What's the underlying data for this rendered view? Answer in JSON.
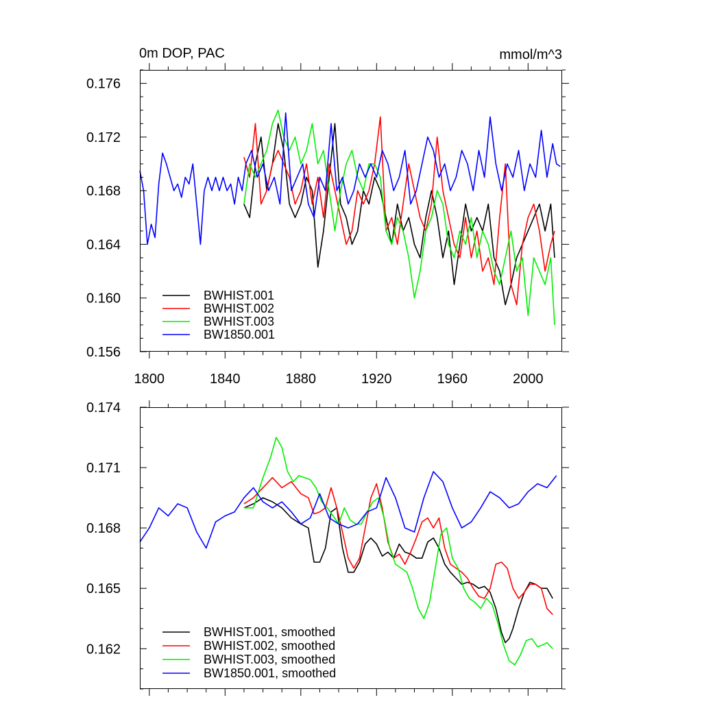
{
  "chart_data": [
    {
      "type": "line",
      "title_left": "0m DOP, PAC",
      "title_right": "mmol/m^3",
      "xlim": [
        1795,
        2018
      ],
      "ylim": [
        0.156,
        0.177
      ],
      "xticks": [
        1800,
        1840,
        1880,
        1920,
        1960,
        2000
      ],
      "yticks": [
        0.156,
        0.16,
        0.164,
        0.168,
        0.172,
        0.176
      ],
      "ytick_labels": [
        "0.156",
        "0.160",
        "0.164",
        "0.168",
        "0.172",
        "0.176"
      ],
      "legend_position": "bottom-left",
      "series": [
        {
          "name": "BWHIST.001",
          "color": "#000000",
          "x": [
            1850,
            1853,
            1856,
            1859,
            1862,
            1865,
            1868,
            1871,
            1874,
            1877,
            1880,
            1883,
            1886,
            1889,
            1892,
            1895,
            1898,
            1901,
            1904,
            1907,
            1910,
            1913,
            1916,
            1919,
            1922,
            1925,
            1928,
            1931,
            1934,
            1937,
            1940,
            1943,
            1946,
            1949,
            1952,
            1955,
            1958,
            1961,
            1964,
            1967,
            1970,
            1973,
            1976,
            1979,
            1982,
            1985,
            1988,
            1991,
            1994,
            1997,
            2000,
            2003,
            2006,
            2009,
            2012,
            2014
          ],
          "values": [
            0.167,
            0.166,
            0.17,
            0.172,
            0.168,
            0.17,
            0.173,
            0.171,
            0.167,
            0.166,
            0.167,
            0.169,
            0.168,
            0.1623,
            0.165,
            0.169,
            0.173,
            0.167,
            0.166,
            0.164,
            0.165,
            0.168,
            0.167,
            0.169,
            0.168,
            0.166,
            0.164,
            0.167,
            0.165,
            0.166,
            0.164,
            0.163,
            0.166,
            0.168,
            0.166,
            0.163,
            0.165,
            0.161,
            0.164,
            0.167,
            0.165,
            0.166,
            0.165,
            0.167,
            0.163,
            0.162,
            0.1595,
            0.161,
            0.163,
            0.164,
            0.165,
            0.166,
            0.167,
            0.165,
            0.167,
            0.163
          ]
        },
        {
          "name": "BWHIST.002",
          "color": "#ff0000",
          "x": [
            1850,
            1853,
            1856,
            1859,
            1862,
            1865,
            1868,
            1871,
            1874,
            1877,
            1880,
            1883,
            1886,
            1889,
            1892,
            1895,
            1898,
            1901,
            1904,
            1907,
            1910,
            1913,
            1916,
            1919,
            1922,
            1925,
            1928,
            1931,
            1934,
            1937,
            1940,
            1943,
            1946,
            1949,
            1952,
            1955,
            1958,
            1961,
            1964,
            1967,
            1970,
            1973,
            1976,
            1979,
            1982,
            1985,
            1988,
            1991,
            1994,
            1997,
            2000,
            2003,
            2006,
            2009,
            2012,
            2014
          ],
          "values": [
            0.1705,
            0.169,
            0.173,
            0.167,
            0.168,
            0.17,
            0.171,
            0.17,
            0.169,
            0.167,
            0.168,
            0.17,
            0.167,
            0.169,
            0.166,
            0.17,
            0.168,
            0.166,
            0.164,
            0.165,
            0.168,
            0.167,
            0.168,
            0.17,
            0.1735,
            0.165,
            0.166,
            0.164,
            0.167,
            0.17,
            0.168,
            0.166,
            0.165,
            0.167,
            0.172,
            0.168,
            0.166,
            0.164,
            0.163,
            0.166,
            0.163,
            0.165,
            0.162,
            0.163,
            0.161,
            0.166,
            0.17,
            0.161,
            0.1595,
            0.164,
            0.166,
            0.167,
            0.165,
            0.162,
            0.164,
            0.165
          ]
        },
        {
          "name": "BWHIST.003",
          "color": "#00ee00",
          "x": [
            1850,
            1853,
            1856,
            1859,
            1862,
            1865,
            1868,
            1871,
            1874,
            1877,
            1880,
            1883,
            1886,
            1889,
            1892,
            1895,
            1898,
            1901,
            1904,
            1907,
            1910,
            1913,
            1916,
            1919,
            1922,
            1925,
            1928,
            1931,
            1934,
            1937,
            1940,
            1943,
            1946,
            1949,
            1952,
            1955,
            1958,
            1961,
            1964,
            1967,
            1970,
            1973,
            1976,
            1979,
            1982,
            1985,
            1988,
            1991,
            1994,
            1997,
            2000,
            2003,
            2006,
            2009,
            2012,
            2014
          ],
          "values": [
            0.167,
            0.17,
            0.169,
            0.17,
            0.171,
            0.173,
            0.174,
            0.172,
            0.171,
            0.172,
            0.17,
            0.171,
            0.173,
            0.17,
            0.171,
            0.168,
            0.165,
            0.168,
            0.17,
            0.171,
            0.169,
            0.168,
            0.17,
            0.17,
            0.169,
            0.165,
            0.164,
            0.166,
            0.165,
            0.163,
            0.16,
            0.162,
            0.165,
            0.166,
            0.168,
            0.167,
            0.164,
            0.163,
            0.165,
            0.164,
            0.166,
            0.163,
            0.165,
            0.164,
            0.162,
            0.161,
            0.163,
            0.165,
            0.162,
            0.163,
            0.1587,
            0.163,
            0.162,
            0.161,
            0.163,
            0.158
          ]
        },
        {
          "name": "BW1850.001",
          "color": "#0000ff",
          "x": [
            1795,
            1797,
            1799,
            1801,
            1803,
            1805,
            1807,
            1809,
            1811,
            1813,
            1815,
            1817,
            1819,
            1821,
            1823,
            1825,
            1827,
            1829,
            1831,
            1833,
            1835,
            1837,
            1839,
            1841,
            1843,
            1845,
            1847,
            1849,
            1851,
            1854,
            1857,
            1860,
            1863,
            1866,
            1869,
            1872,
            1875,
            1878,
            1881,
            1884,
            1887,
            1890,
            1893,
            1896,
            1899,
            1902,
            1905,
            1908,
            1911,
            1914,
            1917,
            1920,
            1923,
            1926,
            1929,
            1932,
            1935,
            1938,
            1941,
            1944,
            1947,
            1950,
            1953,
            1956,
            1959,
            1962,
            1965,
            1968,
            1971,
            1974,
            1977,
            1980,
            1983,
            1986,
            1989,
            1992,
            1995,
            1998,
            2001,
            2004,
            2007,
            2010,
            2013,
            2015,
            2017
          ],
          "values": [
            0.1695,
            0.168,
            0.164,
            0.1655,
            0.1645,
            0.1685,
            0.1708,
            0.17,
            0.169,
            0.168,
            0.1685,
            0.1675,
            0.169,
            0.1685,
            0.17,
            0.167,
            0.164,
            0.168,
            0.169,
            0.168,
            0.169,
            0.168,
            0.169,
            0.168,
            0.1685,
            0.167,
            0.169,
            0.168,
            0.17,
            0.171,
            0.169,
            0.17,
            0.168,
            0.169,
            0.167,
            0.1738,
            0.168,
            0.169,
            0.17,
            0.167,
            0.166,
            0.169,
            0.168,
            0.173,
            0.168,
            0.169,
            0.167,
            0.168,
            0.17,
            0.169,
            0.17,
            0.169,
            0.171,
            0.17,
            0.168,
            0.169,
            0.171,
            0.167,
            0.168,
            0.17,
            0.172,
            0.171,
            0.169,
            0.17,
            0.168,
            0.169,
            0.171,
            0.17,
            0.168,
            0.171,
            0.169,
            0.1735,
            0.17,
            0.168,
            0.17,
            0.169,
            0.171,
            0.168,
            0.17,
            0.169,
            0.1725,
            0.169,
            0.1715,
            0.17,
            0.1698
          ]
        }
      ]
    },
    {
      "type": "line",
      "title_left": "",
      "title_right": "",
      "xlim": [
        1795,
        2018
      ],
      "ylim": [
        0.16,
        0.174
      ],
      "xticks": [
        1800,
        1840,
        1880,
        1920,
        1960,
        2000
      ],
      "yticks": [
        0.162,
        0.165,
        0.168,
        0.171,
        0.174
      ],
      "ytick_labels": [
        "0.162",
        "0.165",
        "0.168",
        "0.171",
        "0.174"
      ],
      "legend_position": "bottom-left",
      "series": [
        {
          "name": "BWHIST.001, smoothed",
          "color": "#000000",
          "x": [
            1850,
            1855,
            1860,
            1865,
            1870,
            1875,
            1880,
            1884,
            1887,
            1890,
            1893,
            1896,
            1899,
            1902,
            1905,
            1908,
            1911,
            1914,
            1917,
            1920,
            1923,
            1926,
            1929,
            1932,
            1935,
            1938,
            1941,
            1944,
            1947,
            1950,
            1953,
            1956,
            1959,
            1962,
            1965,
            1968,
            1971,
            1974,
            1977,
            1980,
            1983,
            1986,
            1988,
            1990,
            1992,
            1995,
            1998,
            2001,
            2004,
            2007,
            2010,
            2013
          ],
          "values": [
            0.169,
            0.1692,
            0.1695,
            0.1693,
            0.169,
            0.1685,
            0.1682,
            0.168,
            0.1663,
            0.1663,
            0.167,
            0.1688,
            0.169,
            0.167,
            0.1658,
            0.1658,
            0.1663,
            0.1672,
            0.1675,
            0.1672,
            0.1666,
            0.1668,
            0.1665,
            0.1672,
            0.1668,
            0.1667,
            0.1665,
            0.1665,
            0.1673,
            0.1675,
            0.167,
            0.1662,
            0.1658,
            0.1655,
            0.1652,
            0.1653,
            0.1652,
            0.165,
            0.1651,
            0.1648,
            0.164,
            0.1628,
            0.1623,
            0.1625,
            0.163,
            0.164,
            0.1648,
            0.1653,
            0.1652,
            0.165,
            0.165,
            0.1645
          ]
        },
        {
          "name": "BWHIST.002, smoothed",
          "color": "#ff0000",
          "x": [
            1850,
            1855,
            1860,
            1865,
            1870,
            1875,
            1880,
            1884,
            1887,
            1890,
            1893,
            1896,
            1899,
            1902,
            1905,
            1908,
            1911,
            1914,
            1917,
            1920,
            1923,
            1926,
            1929,
            1932,
            1935,
            1938,
            1941,
            1944,
            1947,
            1950,
            1953,
            1956,
            1959,
            1962,
            1965,
            1968,
            1971,
            1974,
            1977,
            1980,
            1983,
            1986,
            1989,
            1992,
            1995,
            1998,
            2001,
            2004,
            2007,
            2010,
            2013
          ],
          "values": [
            0.1692,
            0.1695,
            0.17,
            0.1705,
            0.17,
            0.1703,
            0.1697,
            0.1695,
            0.1687,
            0.1688,
            0.169,
            0.17,
            0.169,
            0.1678,
            0.1665,
            0.166,
            0.1665,
            0.168,
            0.1695,
            0.1702,
            0.169,
            0.1673,
            0.1665,
            0.1667,
            0.1662,
            0.1668,
            0.1675,
            0.1683,
            0.1685,
            0.168,
            0.1685,
            0.167,
            0.1662,
            0.166,
            0.1658,
            0.1655,
            0.165,
            0.1646,
            0.1645,
            0.165,
            0.1662,
            0.1663,
            0.166,
            0.165,
            0.1645,
            0.1648,
            0.1652,
            0.1652,
            0.165,
            0.164,
            0.1637
          ]
        },
        {
          "name": "BWHIST.003, smoothed",
          "color": "#00ee00",
          "x": [
            1850,
            1855,
            1860,
            1864,
            1867,
            1870,
            1873,
            1876,
            1879,
            1882,
            1885,
            1888,
            1891,
            1894,
            1897,
            1900,
            1903,
            1906,
            1909,
            1912,
            1915,
            1918,
            1921,
            1924,
            1927,
            1930,
            1933,
            1936,
            1939,
            1942,
            1945,
            1948,
            1951,
            1954,
            1957,
            1960,
            1963,
            1966,
            1969,
            1972,
            1975,
            1978,
            1981,
            1984,
            1987,
            1990,
            1993,
            1996,
            1999,
            2002,
            2005,
            2008,
            2010,
            2013
          ],
          "values": [
            0.169,
            0.169,
            0.1705,
            0.1715,
            0.1725,
            0.172,
            0.1708,
            0.1703,
            0.1706,
            0.1705,
            0.1704,
            0.17,
            0.1693,
            0.169,
            0.1686,
            0.1682,
            0.169,
            0.1684,
            0.1682,
            0.1682,
            0.1688,
            0.1693,
            0.1695,
            0.1685,
            0.167,
            0.1662,
            0.166,
            0.1658,
            0.165,
            0.164,
            0.1635,
            0.1643,
            0.166,
            0.1677,
            0.168,
            0.1665,
            0.166,
            0.165,
            0.1645,
            0.1643,
            0.164,
            0.1645,
            0.1642,
            0.1633,
            0.1622,
            0.1614,
            0.1612,
            0.1617,
            0.1624,
            0.1625,
            0.1621,
            0.1622,
            0.1623,
            0.162
          ]
        },
        {
          "name": "BW1850.001, smoothed",
          "color": "#0000ff",
          "x": [
            1795,
            1800,
            1805,
            1810,
            1815,
            1820,
            1825,
            1830,
            1835,
            1840,
            1845,
            1850,
            1855,
            1860,
            1865,
            1870,
            1875,
            1880,
            1885,
            1890,
            1895,
            1900,
            1905,
            1910,
            1915,
            1920,
            1925,
            1930,
            1935,
            1940,
            1945,
            1950,
            1955,
            1960,
            1965,
            1970,
            1975,
            1980,
            1985,
            1990,
            1995,
            2000,
            2005,
            2010,
            2015
          ],
          "values": [
            0.1673,
            0.168,
            0.169,
            0.1686,
            0.1692,
            0.169,
            0.1678,
            0.167,
            0.1683,
            0.1686,
            0.1688,
            0.1695,
            0.17,
            0.1693,
            0.169,
            0.1693,
            0.1688,
            0.1682,
            0.1685,
            0.1697,
            0.1685,
            0.1682,
            0.168,
            0.1682,
            0.1688,
            0.169,
            0.1705,
            0.1695,
            0.168,
            0.1678,
            0.1695,
            0.1708,
            0.1703,
            0.169,
            0.168,
            0.1683,
            0.169,
            0.1698,
            0.1695,
            0.169,
            0.1692,
            0.1698,
            0.1702,
            0.17,
            0.1706
          ]
        }
      ]
    }
  ]
}
